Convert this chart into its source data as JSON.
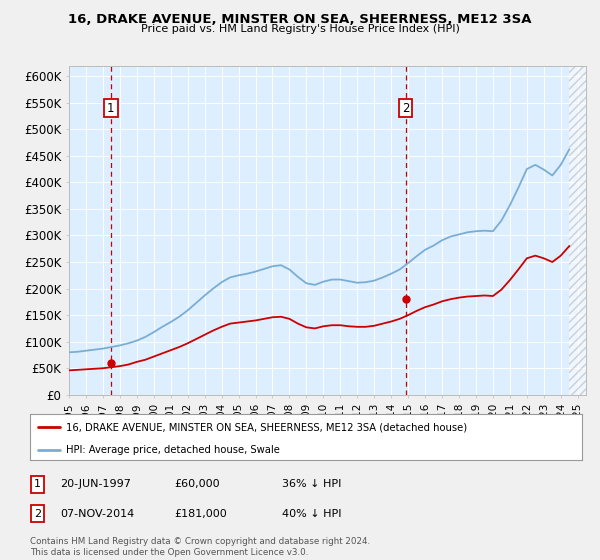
{
  "title": "16, DRAKE AVENUE, MINSTER ON SEA, SHEERNESS, ME12 3SA",
  "subtitle": "Price paid vs. HM Land Registry's House Price Index (HPI)",
  "legend_line1": "16, DRAKE AVENUE, MINSTER ON SEA, SHEERNESS, ME12 3SA (detached house)",
  "legend_line2": "HPI: Average price, detached house, Swale",
  "marker1_date": "20-JUN-1997",
  "marker1_year": 1997.47,
  "marker1_price": 60000,
  "marker1_hpi_text": "36% ↓ HPI",
  "marker2_date": "07-NOV-2014",
  "marker2_year": 2014.85,
  "marker2_price": 181000,
  "marker2_hpi_text": "40% ↓ HPI",
  "footer_line1": "Contains HM Land Registry data © Crown copyright and database right 2024.",
  "footer_line2": "This data is licensed under the Open Government Licence v3.0.",
  "red_color": "#cc0000",
  "blue_color": "#7aadd4",
  "background_plot": "#ddeeff",
  "background_fig": "#f0f0f0",
  "grid_color": "#ffffff",
  "ylim": [
    0,
    620000
  ],
  "xlim_start": 1995.0,
  "xlim_end": 2025.5,
  "hpi_years": [
    1995.0,
    1995.5,
    1996.0,
    1996.5,
    1997.0,
    1997.5,
    1998.0,
    1998.5,
    1999.0,
    1999.5,
    2000.0,
    2000.5,
    2001.0,
    2001.5,
    2002.0,
    2002.5,
    2003.0,
    2003.5,
    2004.0,
    2004.5,
    2005.0,
    2005.5,
    2006.0,
    2006.5,
    2007.0,
    2007.5,
    2008.0,
    2008.5,
    2009.0,
    2009.5,
    2010.0,
    2010.5,
    2011.0,
    2011.5,
    2012.0,
    2012.5,
    2013.0,
    2013.5,
    2014.0,
    2014.5,
    2015.0,
    2015.5,
    2016.0,
    2016.5,
    2017.0,
    2017.5,
    2018.0,
    2018.5,
    2019.0,
    2019.5,
    2020.0,
    2020.5,
    2021.0,
    2021.5,
    2022.0,
    2022.5,
    2023.0,
    2023.5,
    2024.0,
    2024.5
  ],
  "hpi_values": [
    80000,
    81000,
    83000,
    85000,
    87000,
    90000,
    93000,
    97000,
    102000,
    109000,
    118000,
    128000,
    137000,
    147000,
    159000,
    173000,
    187000,
    200000,
    212000,
    221000,
    225000,
    228000,
    232000,
    237000,
    242000,
    244000,
    236000,
    222000,
    210000,
    207000,
    213000,
    217000,
    217000,
    214000,
    211000,
    212000,
    215000,
    221000,
    228000,
    236000,
    248000,
    261000,
    273000,
    281000,
    291000,
    298000,
    302000,
    306000,
    308000,
    309000,
    308000,
    328000,
    357000,
    390000,
    425000,
    433000,
    424000,
    413000,
    433000,
    462000
  ],
  "red_years": [
    1995.0,
    1995.5,
    1996.0,
    1996.5,
    1997.0,
    1997.5,
    1998.0,
    1998.5,
    1999.0,
    1999.5,
    2000.0,
    2000.5,
    2001.0,
    2001.5,
    2002.0,
    2002.5,
    2003.0,
    2003.5,
    2004.0,
    2004.5,
    2005.0,
    2005.5,
    2006.0,
    2006.5,
    2007.0,
    2007.5,
    2008.0,
    2008.5,
    2009.0,
    2009.5,
    2010.0,
    2010.5,
    2011.0,
    2011.5,
    2012.0,
    2012.5,
    2013.0,
    2013.5,
    2014.0,
    2014.5,
    2015.0,
    2015.5,
    2016.0,
    2016.5,
    2017.0,
    2017.5,
    2018.0,
    2018.5,
    2019.0,
    2019.5,
    2020.0,
    2020.5,
    2021.0,
    2021.5,
    2022.0,
    2022.5,
    2023.0,
    2023.5,
    2024.0,
    2024.5
  ],
  "red_values": [
    46000,
    47000,
    48000,
    49000,
    50000,
    52000,
    54000,
    57000,
    62000,
    66000,
    72000,
    78000,
    84000,
    90000,
    97000,
    105000,
    113000,
    121000,
    128000,
    134000,
    136000,
    138000,
    140000,
    143000,
    146000,
    147000,
    143000,
    134000,
    127000,
    125000,
    129000,
    131000,
    131000,
    129000,
    128000,
    128000,
    130000,
    134000,
    138000,
    143000,
    150000,
    158000,
    165000,
    170000,
    176000,
    180000,
    183000,
    185000,
    186000,
    187000,
    186000,
    198000,
    216000,
    236000,
    257000,
    262000,
    257000,
    250000,
    262000,
    280000
  ],
  "xtick_years": [
    1995,
    1996,
    1997,
    1998,
    1999,
    2000,
    2001,
    2002,
    2003,
    2004,
    2005,
    2006,
    2007,
    2008,
    2009,
    2010,
    2011,
    2012,
    2013,
    2014,
    2015,
    2016,
    2017,
    2018,
    2019,
    2020,
    2021,
    2022,
    2023,
    2024,
    2025
  ]
}
